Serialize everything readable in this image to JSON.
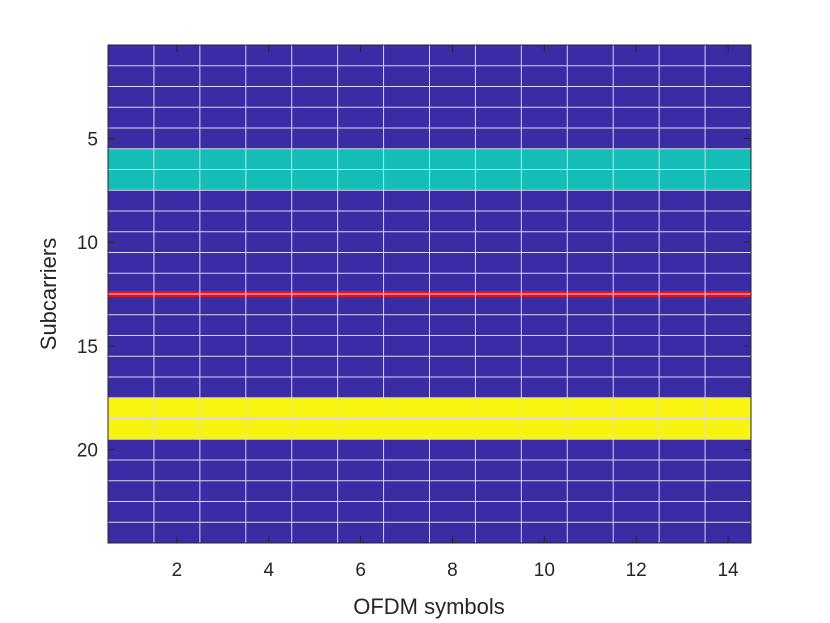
{
  "chart_data": {
    "type": "heatmap",
    "xlabel": "OFDM symbols",
    "ylabel": "Subcarriers",
    "x": [
      1,
      2,
      3,
      4,
      5,
      6,
      7,
      8,
      9,
      10,
      11,
      12,
      13,
      14
    ],
    "y_rows": 24,
    "xlim": [
      0.5,
      14.5
    ],
    "ylim": [
      0.5,
      24.5
    ],
    "y_reversed": true,
    "x_ticks": [
      2,
      4,
      6,
      8,
      10,
      12,
      14
    ],
    "y_ticks": [
      5,
      10,
      15,
      20
    ],
    "grid": true,
    "background_color": "#3a2ca5",
    "grid_color": "#d8d8e8",
    "bands": [
      {
        "rows": [
          6,
          7
        ],
        "color": "#14bdb6"
      },
      {
        "row_boundary": 12.5,
        "color": "#e8101c"
      },
      {
        "rows": [
          18,
          19
        ],
        "color": "#f9f40f"
      }
    ]
  }
}
